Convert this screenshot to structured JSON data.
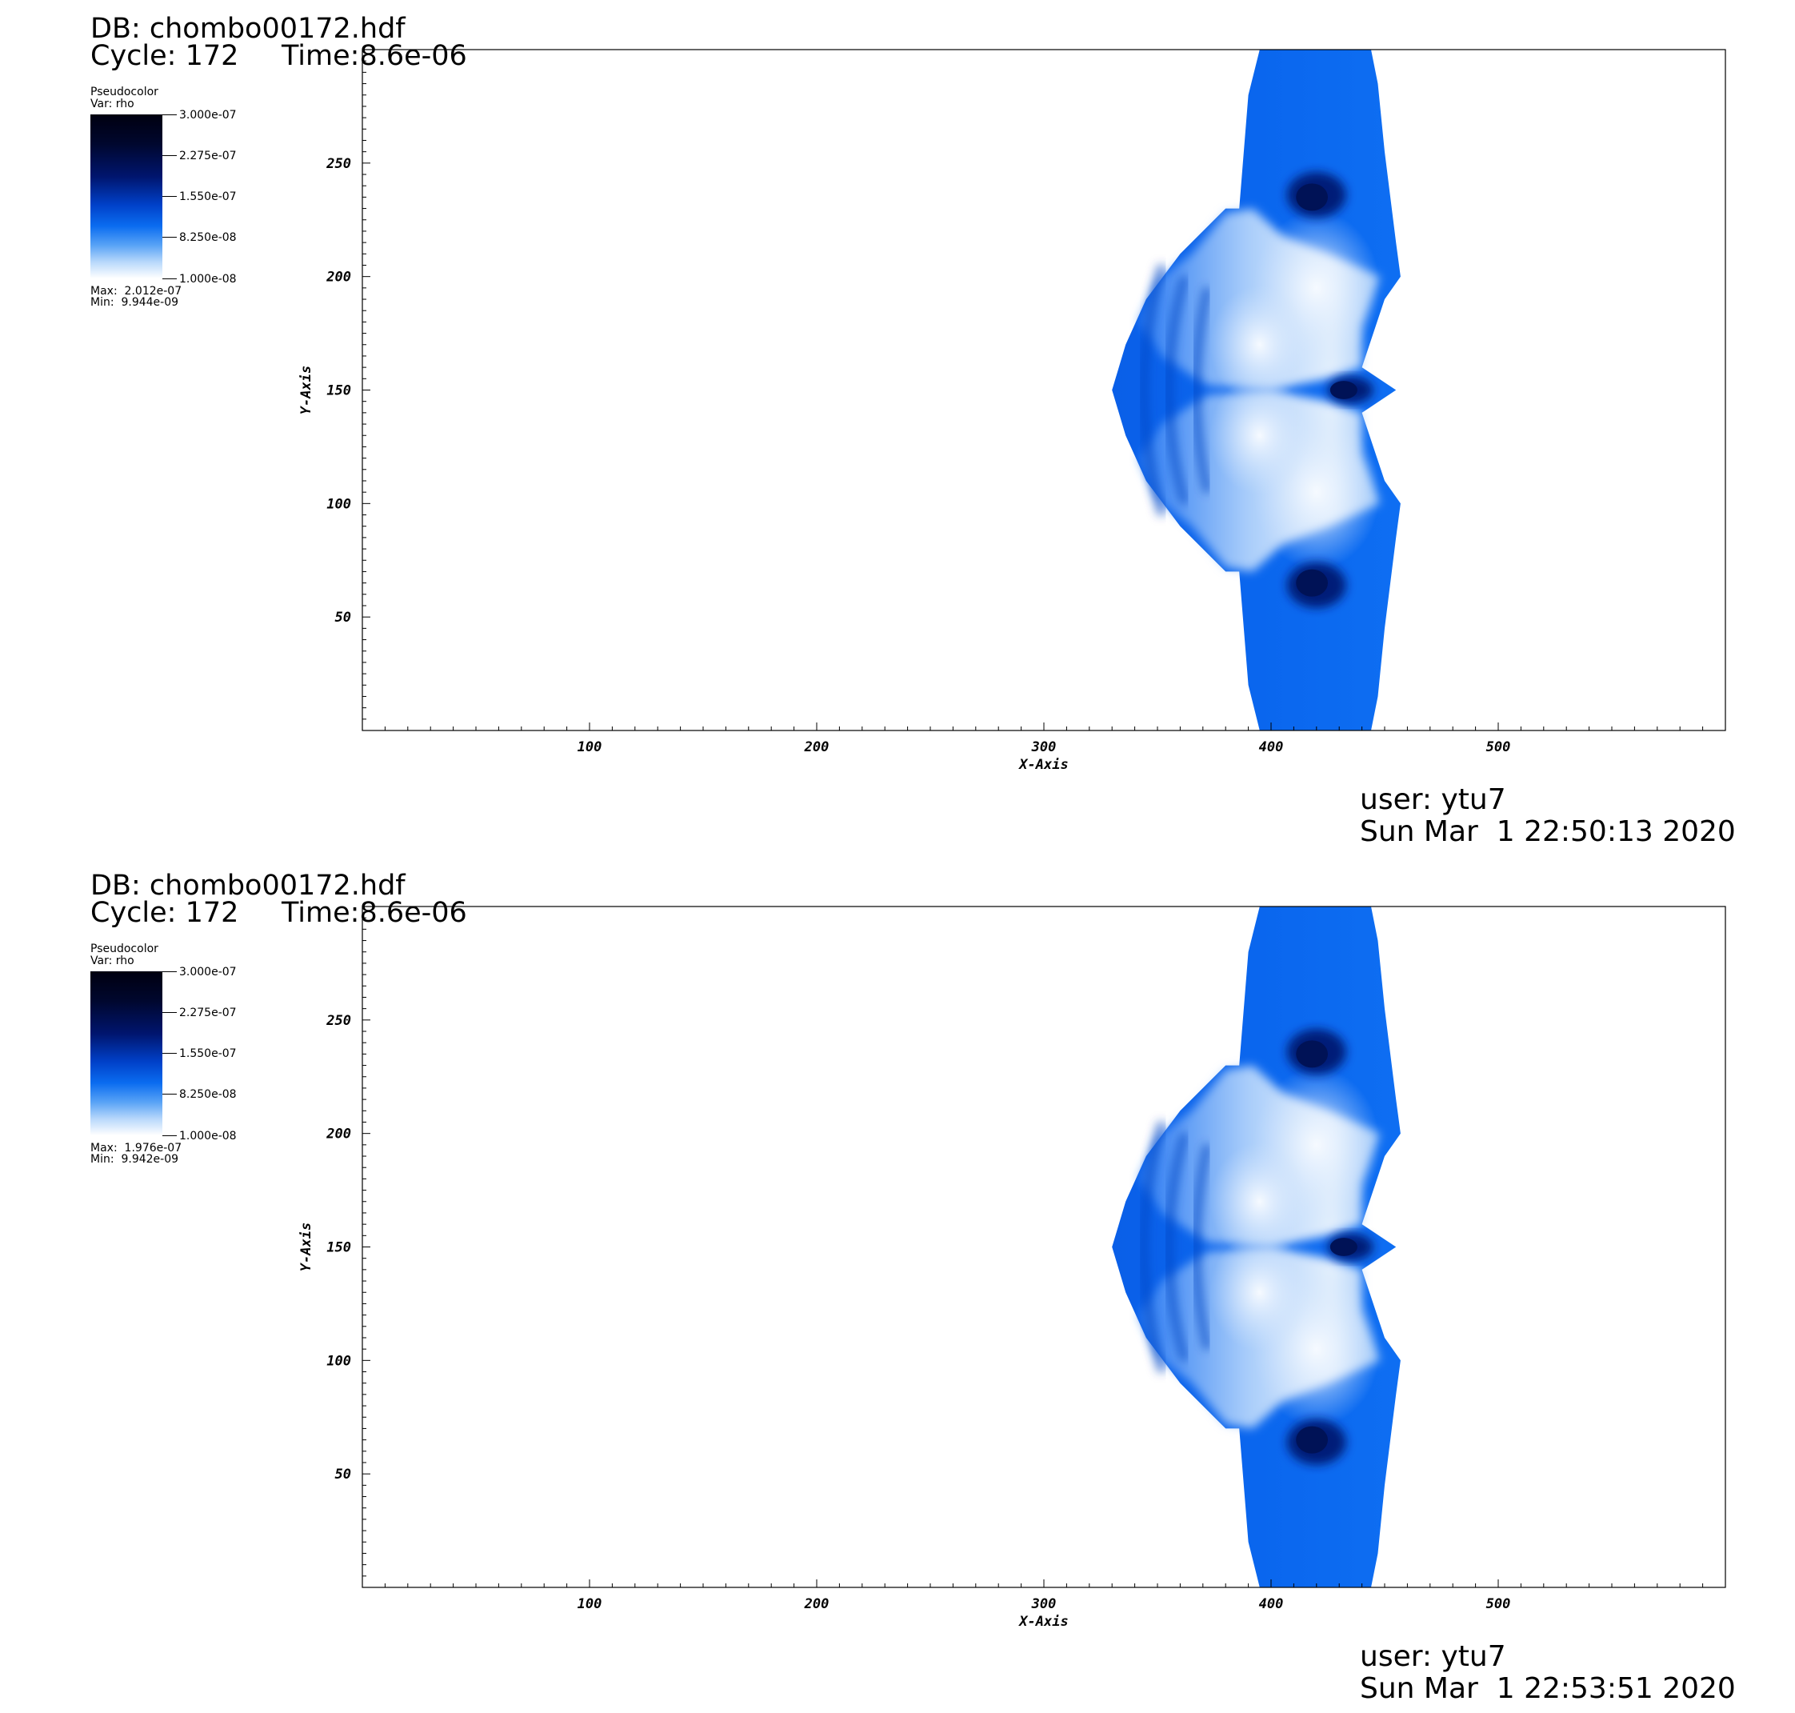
{
  "panels": [
    {
      "db_line": "DB: chombo00172.hdf",
      "cycle_line": "Cycle: 172",
      "time_line": "Time:8.6e-06",
      "legend": {
        "title": "Pseudocolor",
        "var": "Var: rho",
        "ticks": [
          "3.000e-07",
          "2.275e-07",
          "1.550e-07",
          "8.250e-08",
          "1.000e-08"
        ],
        "max": "Max:  2.012e-07",
        "min": "Min:  9.944e-09"
      },
      "user": "user: ytu7",
      "date": "Sun Mar  1 22:50:13 2020"
    },
    {
      "db_line": "DB: chombo00172.hdf",
      "cycle_line": "Cycle: 172",
      "time_line": "Time:8.6e-06",
      "legend": {
        "title": "Pseudocolor",
        "var": "Var: rho",
        "ticks": [
          "3.000e-07",
          "2.275e-07",
          "1.550e-07",
          "8.250e-08",
          "1.000e-08"
        ],
        "max": "Max:  1.976e-07",
        "min": "Min:  9.942e-09"
      },
      "user": "user: ytu7",
      "date": "Sun Mar  1 22:53:51 2020"
    }
  ],
  "chart_data": [
    {
      "type": "heatmap",
      "title": "",
      "variable": "rho",
      "colormap": [
        "#ffffff",
        "#0a6cf0",
        "#00072e",
        "#000010"
      ],
      "color_range": [
        1e-08,
        3e-07
      ],
      "data_max": 2.012e-07,
      "data_min": 9.944e-09,
      "xlabel": "X-Axis",
      "ylabel": "Y-Axis",
      "xlim": [
        0,
        600
      ],
      "ylim": [
        0,
        300
      ],
      "xticks": [
        100,
        200,
        300,
        400,
        500
      ],
      "yticks": [
        50,
        100,
        150,
        200,
        250
      ],
      "xtick_labels": [
        "100",
        "200",
        "300",
        "400",
        "500"
      ],
      "ytick_labels": [
        "50",
        "100",
        "150",
        "200",
        "250"
      ]
    },
    {
      "type": "heatmap",
      "title": "",
      "variable": "rho",
      "colormap": [
        "#ffffff",
        "#0a6cf0",
        "#00072e",
        "#000010"
      ],
      "color_range": [
        1e-08,
        3e-07
      ],
      "data_max": 1.976e-07,
      "data_min": 9.942e-09,
      "xlabel": "X-Axis",
      "ylabel": "Y-Axis",
      "xlim": [
        0,
        600
      ],
      "ylim": [
        0,
        300
      ],
      "xticks": [
        100,
        200,
        300,
        400,
        500
      ],
      "yticks": [
        50,
        100,
        150,
        200,
        250
      ],
      "xtick_labels": [
        "100",
        "200",
        "300",
        "400",
        "500"
      ],
      "ytick_labels": [
        "50",
        "100",
        "150",
        "200",
        "250"
      ]
    }
  ]
}
